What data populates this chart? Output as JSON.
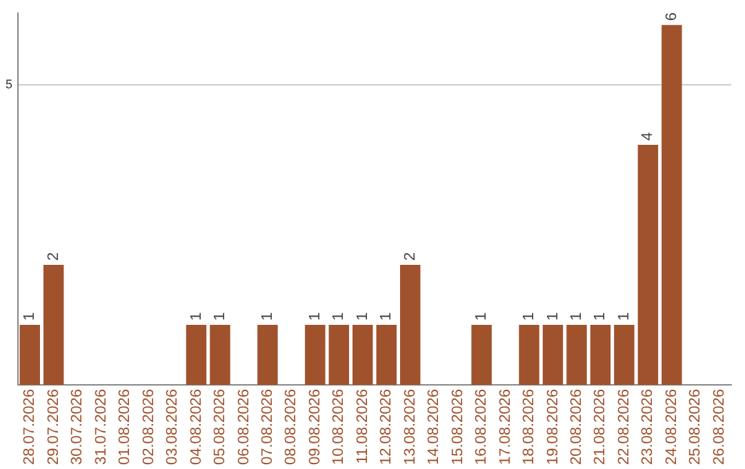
{
  "chart_data": {
    "type": "bar",
    "categories": [
      "28.07.2026",
      "29.07.2026",
      "30.07.2026",
      "31.07.2026",
      "01.08.2026",
      "02.08.2026",
      "03.08.2026",
      "04.08.2026",
      "05.08.2026",
      "06.08.2026",
      "07.08.2026",
      "08.08.2026",
      "09.08.2026",
      "10.08.2026",
      "11.08.2026",
      "12.08.2026",
      "13.08.2026",
      "14.08.2026",
      "15.08.2026",
      "16.08.2026",
      "17.08.2026",
      "18.08.2026",
      "19.08.2026",
      "20.08.2026",
      "21.08.2026",
      "22.08.2026",
      "23.08.2026",
      "24.08.2026",
      "25.08.2026",
      "26.08.2026"
    ],
    "values": [
      1,
      2,
      0,
      0,
      0,
      0,
      0,
      1,
      1,
      0,
      1,
      0,
      1,
      1,
      1,
      1,
      2,
      0,
      0,
      1,
      0,
      1,
      1,
      1,
      1,
      1,
      4,
      6,
      0,
      0
    ],
    "value_labels": [
      "1",
      "2",
      null,
      null,
      null,
      null,
      null,
      "1",
      "1",
      null,
      "1",
      null,
      "1",
      "1",
      "1",
      "1",
      "2",
      null,
      null,
      "1",
      null,
      "1",
      "1",
      "1",
      "1",
      "1",
      "4",
      "6",
      null,
      null
    ],
    "color": "#a0522d",
    "ylim": [
      0,
      6.2
    ],
    "yticks": [
      5
    ],
    "grid": "y",
    "legend": false
  }
}
